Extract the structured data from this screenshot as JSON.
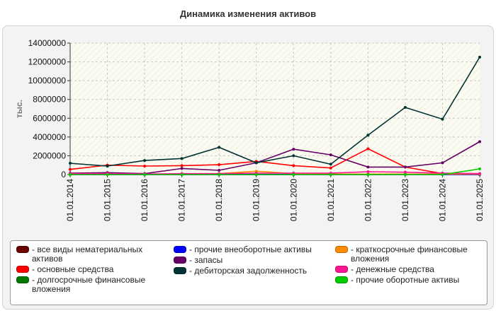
{
  "chart_data": {
    "type": "line",
    "title": "Динамика изменения активов",
    "ylabel": "тыс.",
    "xlabel": "",
    "ylim": [
      0,
      14000000
    ],
    "yticks": [
      "0",
      "2000000",
      "4000000",
      "6000000",
      "8000000",
      "10000000",
      "12000000",
      "14000000"
    ],
    "categories": [
      "01.01.2014",
      "01.01.2015",
      "01.01.2016",
      "01.01.2017",
      "01.01.2018",
      "01.01.2019",
      "01.01.2020",
      "01.01.2021",
      "01.01.2022",
      "01.01.2023",
      "01.01.2024",
      "01.01.2025"
    ],
    "grid": true,
    "legend_position": "bottom",
    "series": [
      {
        "name": "все виды нематериальных активов",
        "color": "#6b0000",
        "values": [
          0,
          0,
          0,
          0,
          0,
          0,
          0,
          0,
          0,
          0,
          0,
          0
        ]
      },
      {
        "name": "основные средства",
        "color": "#ff0000",
        "values": [
          550000,
          1000000,
          900000,
          950000,
          1050000,
          1400000,
          950000,
          700000,
          2750000,
          800000,
          100000,
          100000
        ]
      },
      {
        "name": "долгосрочные финансовые вложения",
        "color": "#007700",
        "values": [
          20000,
          20000,
          20000,
          20000,
          20000,
          20000,
          20000,
          20000,
          20000,
          20000,
          20000,
          20000
        ]
      },
      {
        "name": "прочие внеоборотные активы",
        "color": "#0000ff",
        "values": [
          10000,
          10000,
          10000,
          10000,
          10000,
          10000,
          10000,
          10000,
          10000,
          10000,
          10000,
          10000
        ]
      },
      {
        "name": "запасы",
        "color": "#660066",
        "values": [
          150000,
          200000,
          100000,
          650000,
          450000,
          1250000,
          2700000,
          2100000,
          800000,
          800000,
          1250000,
          3500000
        ]
      },
      {
        "name": "дебиторская задолженность",
        "color": "#003333",
        "values": [
          1200000,
          900000,
          1500000,
          1700000,
          2900000,
          1250000,
          2000000,
          1100000,
          4200000,
          7150000,
          5900000,
          12500000
        ]
      },
      {
        "name": "краткосрочные финансовые вложения",
        "color": "#ff8c00",
        "values": [
          50000,
          50000,
          50000,
          50000,
          100000,
          350000,
          100000,
          50000,
          50000,
          50000,
          50000,
          50000
        ]
      },
      {
        "name": "денежные средства",
        "color": "#ff1493",
        "values": [
          100000,
          100000,
          50000,
          100000,
          100000,
          150000,
          150000,
          150000,
          300000,
          250000,
          150000,
          100000
        ]
      },
      {
        "name": "прочие оборотные активы",
        "color": "#00cc00",
        "values": [
          0,
          0,
          0,
          0,
          0,
          0,
          0,
          0,
          0,
          0,
          0,
          600000
        ]
      }
    ]
  }
}
